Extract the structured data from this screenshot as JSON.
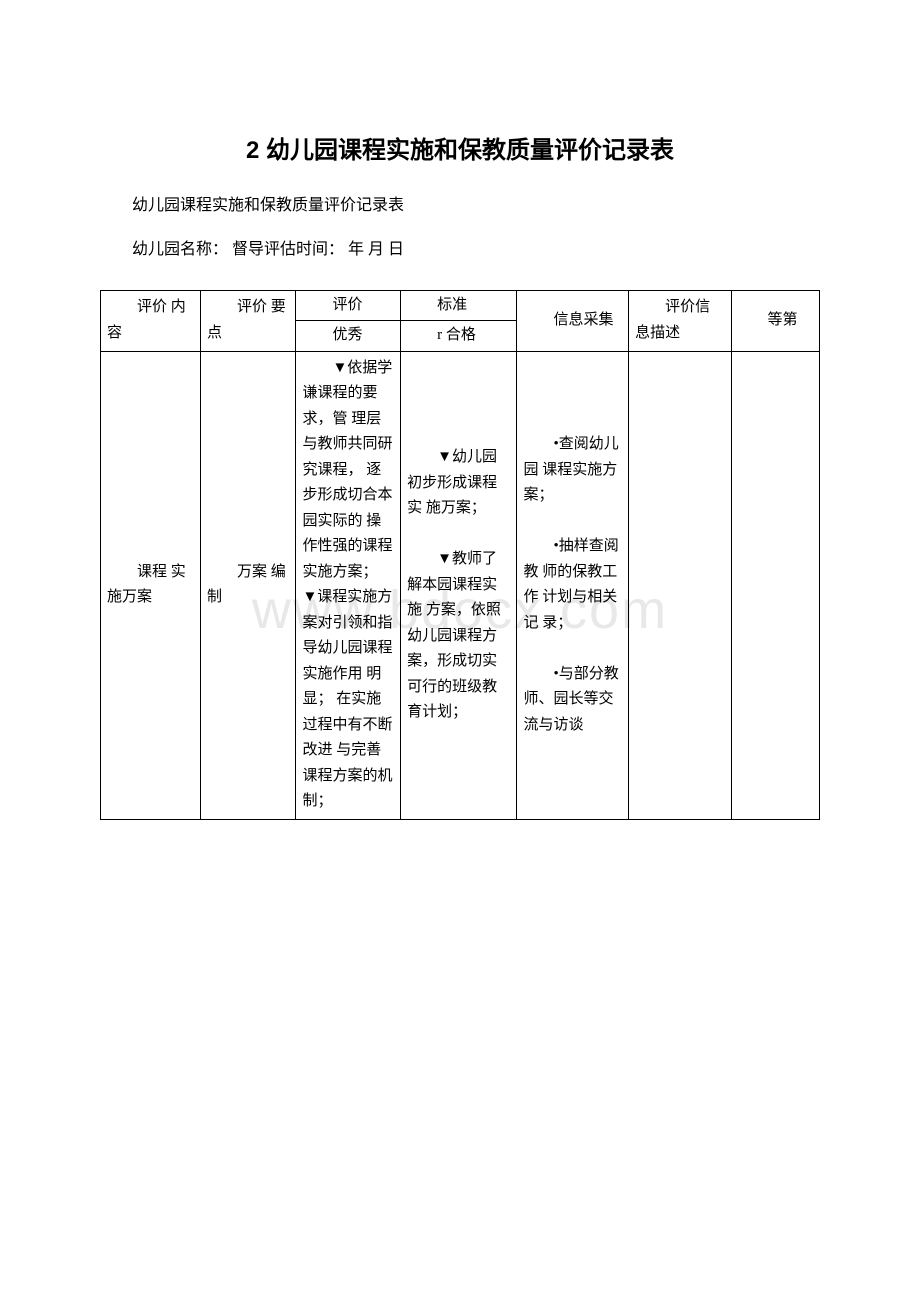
{
  "title": "2 幼儿园课程实施和保教质量评价记录表",
  "subtitle": "幼儿园课程实施和保教质量评价记录表",
  "metaline": "幼儿园名称：  督导评估时间：  年 月 日",
  "watermark": "www.bdocx.com",
  "header": {
    "col0": "评价 内容",
    "col1": "评价 要点",
    "col2a": "评价",
    "col3a": "标准",
    "col2b": "优秀",
    "col3b": "r 合格",
    "col4": "信息采集",
    "col5": "评价信息描述",
    "col6": "等第"
  },
  "row": {
    "col0": "课程 实施万案",
    "col1": "万案 编制",
    "excellent": "▼依据学谦课程的要求，管 理层与教师共同研究课程， 逐步形成切合本园实际的 操 作性强的课程实施方案； ▼课程实施方案对引领和指导幼儿园课程实施作用 明显； 在实施过程中有不断改进 与完善课程方案的机制；",
    "qualified_p1": "▼幼儿园初步形成课程实 施万案；",
    "qualified_p2": "▼教师了解本园课程实施 方案，依照幼儿园课程方案，形成切实可行的班级教育计划；",
    "collect_p1": "•查阅幼儿园 课程实施方案；",
    "collect_p2": "•抽样查阅教 师的保教工作 计划与相关记 录；",
    "collect_p3": "•与部分教师、园长等交流与访谈"
  }
}
